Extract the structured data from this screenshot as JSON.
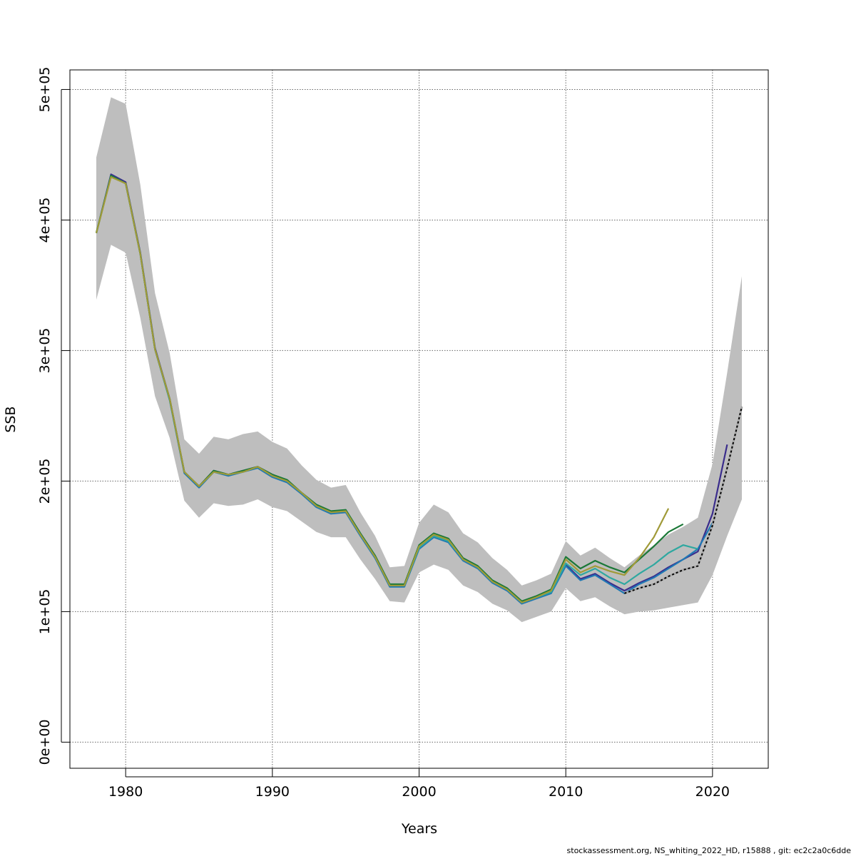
{
  "chart_data": {
    "type": "line",
    "title": "",
    "xlabel": "Years",
    "ylabel": "SSB",
    "xlim": [
      1976.2,
      2023.8
    ],
    "ylim": [
      -20000,
      515000
    ],
    "x_ticks": [
      1980,
      1990,
      2000,
      2010,
      2020
    ],
    "x_tick_labels": [
      "1980",
      "1990",
      "2000",
      "2010",
      "2020"
    ],
    "y_ticks": [
      0,
      100000,
      200000,
      300000,
      400000,
      500000
    ],
    "y_tick_labels": [
      "0e+00",
      "1e+05",
      "2e+05",
      "3e+05",
      "4e+05",
      "5e+05"
    ],
    "grid": true,
    "band": {
      "x": [
        1978,
        1979,
        1980,
        1981,
        1982,
        1983,
        1984,
        1985,
        1986,
        1987,
        1988,
        1989,
        1990,
        1991,
        1992,
        1993,
        1994,
        1995,
        1996,
        1997,
        1998,
        1999,
        2000,
        2001,
        2002,
        2003,
        2004,
        2005,
        2006,
        2007,
        2008,
        2009,
        2010,
        2011,
        2012,
        2013,
        2014,
        2015,
        2016,
        2017,
        2018,
        2019,
        2020,
        2021,
        2022
      ],
      "lower": [
        339000,
        381000,
        375000,
        325000,
        265000,
        233000,
        185000,
        172000,
        183000,
        181000,
        182000,
        186000,
        180000,
        177000,
        169000,
        161000,
        157000,
        157000,
        140000,
        125000,
        108000,
        107000,
        130000,
        136000,
        132000,
        120000,
        115000,
        106000,
        101000,
        92000,
        96000,
        100000,
        118000,
        108000,
        111000,
        104000,
        98000,
        100000,
        101000,
        103000,
        105000,
        107000,
        128000,
        158000,
        186000
      ],
      "upper": [
        448000,
        494000,
        489000,
        427000,
        344000,
        298000,
        232000,
        221000,
        234000,
        232000,
        236000,
        238000,
        230000,
        225000,
        212000,
        201000,
        195000,
        197000,
        176000,
        158000,
        134000,
        135000,
        168000,
        182000,
        176000,
        160000,
        153000,
        141000,
        132000,
        120000,
        124000,
        129000,
        154000,
        143000,
        149000,
        141000,
        134000,
        143000,
        151000,
        159000,
        165000,
        172000,
        213000,
        283000,
        357000
      ]
    },
    "series": [
      {
        "color": "#3a2c8c",
        "x": [
          1978,
          1979,
          1980,
          1981,
          1982,
          1983,
          1984,
          1985,
          1986,
          1987,
          1988,
          1989,
          1990,
          1991,
          1992,
          1993,
          1994,
          1995,
          1996,
          1997,
          1998,
          1999,
          2000,
          2001,
          2002,
          2003,
          2004,
          2005,
          2006,
          2007,
          2008,
          2009,
          2010,
          2011,
          2012,
          2013,
          2014,
          2015,
          2016,
          2017,
          2018,
          2019,
          2020,
          2021
        ],
        "values": [
          390000,
          435000,
          429000,
          375000,
          302000,
          263000,
          207000,
          196000,
          208000,
          205000,
          208000,
          211000,
          205000,
          200000,
          191000,
          181000,
          176000,
          177000,
          159000,
          142000,
          120000,
          120000,
          150000,
          159000,
          154000,
          140000,
          134000,
          123000,
          117000,
          107000,
          111000,
          115000,
          136000,
          125000,
          129000,
          122000,
          116000,
          122000,
          127000,
          134000,
          140000,
          146000,
          175000,
          228000
        ]
      },
      {
        "color": "#1f78b4",
        "x": [
          1978,
          1979,
          1980,
          1981,
          1982,
          1983,
          1984,
          1985,
          1986,
          1987,
          1988,
          1989,
          1990,
          1991,
          1992,
          1993,
          1994,
          1995,
          1996,
          1997,
          1998,
          1999,
          2000,
          2001,
          2002,
          2003,
          2004,
          2005,
          2006,
          2007,
          2008,
          2009,
          2010,
          2011,
          2012,
          2013,
          2014,
          2015,
          2016,
          2017,
          2018,
          2019,
          2020
        ],
        "values": [
          390000,
          434000,
          428000,
          374000,
          301000,
          262000,
          206000,
          195000,
          207000,
          204000,
          207000,
          210000,
          203000,
          199000,
          190000,
          180000,
          175000,
          176000,
          158000,
          141000,
          119000,
          119000,
          148000,
          157000,
          153000,
          139000,
          133000,
          122000,
          116000,
          106000,
          110000,
          114000,
          135000,
          124000,
          128000,
          121000,
          114000,
          121000,
          126000,
          133000,
          140000,
          148000,
          168000
        ]
      },
      {
        "color": "#2fa8a0",
        "x": [
          1978,
          1979,
          1980,
          1981,
          1982,
          1983,
          1984,
          1985,
          1986,
          1987,
          1988,
          1989,
          1990,
          1991,
          1992,
          1993,
          1994,
          1995,
          1996,
          1997,
          1998,
          1999,
          2000,
          2001,
          2002,
          2003,
          2004,
          2005,
          2006,
          2007,
          2008,
          2009,
          2010,
          2011,
          2012,
          2013,
          2014,
          2015,
          2016,
          2017,
          2018,
          2019
        ],
        "values": [
          390000,
          434000,
          428000,
          374000,
          301000,
          262000,
          207000,
          196000,
          207000,
          205000,
          207000,
          211000,
          204000,
          200000,
          191000,
          181000,
          176000,
          177000,
          159000,
          142000,
          120000,
          120000,
          149000,
          158000,
          154000,
          140000,
          134000,
          123000,
          117000,
          107000,
          111000,
          115000,
          137000,
          128000,
          133000,
          126000,
          121000,
          129000,
          136000,
          145000,
          151000,
          148000
        ]
      },
      {
        "color": "#1b7837",
        "x": [
          1978,
          1979,
          1980,
          1981,
          1982,
          1983,
          1984,
          1985,
          1986,
          1987,
          1988,
          1989,
          1990,
          1991,
          1992,
          1993,
          1994,
          1995,
          1996,
          1997,
          1998,
          1999,
          2000,
          2001,
          2002,
          2003,
          2004,
          2005,
          2006,
          2007,
          2008,
          2009,
          2010,
          2011,
          2012,
          2013,
          2014,
          2015,
          2016,
          2017,
          2018
        ],
        "values": [
          390000,
          434000,
          428000,
          374000,
          301000,
          263000,
          207000,
          196000,
          208000,
          205000,
          208000,
          211000,
          205000,
          201000,
          191000,
          182000,
          177000,
          178000,
          160000,
          143000,
          121000,
          121000,
          151000,
          160000,
          156000,
          141000,
          135000,
          124000,
          118000,
          108000,
          112000,
          117000,
          142000,
          133000,
          139000,
          134000,
          130000,
          140000,
          150000,
          161000,
          167000
        ]
      },
      {
        "color": "#a09a38",
        "x": [
          1978,
          1979,
          1980,
          1981,
          1982,
          1983,
          1984,
          1985,
          1986,
          1987,
          1988,
          1989,
          1990,
          1991,
          1992,
          1993,
          1994,
          1995,
          1996,
          1997,
          1998,
          1999,
          2000,
          2001,
          2002,
          2003,
          2004,
          2005,
          2006,
          2007,
          2008,
          2009,
          2010,
          2011,
          2012,
          2013,
          2014,
          2015,
          2016,
          2017
        ],
        "values": [
          390000,
          433000,
          428000,
          374000,
          301000,
          263000,
          207000,
          196000,
          207000,
          205000,
          207000,
          211000,
          204000,
          200000,
          191000,
          181000,
          176000,
          177000,
          159000,
          142000,
          120000,
          120000,
          150000,
          159000,
          155000,
          140000,
          134000,
          123000,
          117000,
          107000,
          111000,
          116000,
          140000,
          130000,
          135000,
          131000,
          128000,
          141000,
          157000,
          179000
        ]
      },
      {
        "color": "#000000",
        "dashed": true,
        "x": [
          2014,
          2015,
          2016,
          2017,
          2018,
          2019,
          2020,
          2021,
          2022
        ],
        "values": [
          114000,
          118000,
          121000,
          127000,
          132000,
          135000,
          166000,
          210000,
          257000
        ]
      }
    ]
  },
  "footer": "stockassessment.org, NS_whiting_2022_HD, r15888 , git: ec2c2a0c6dde"
}
